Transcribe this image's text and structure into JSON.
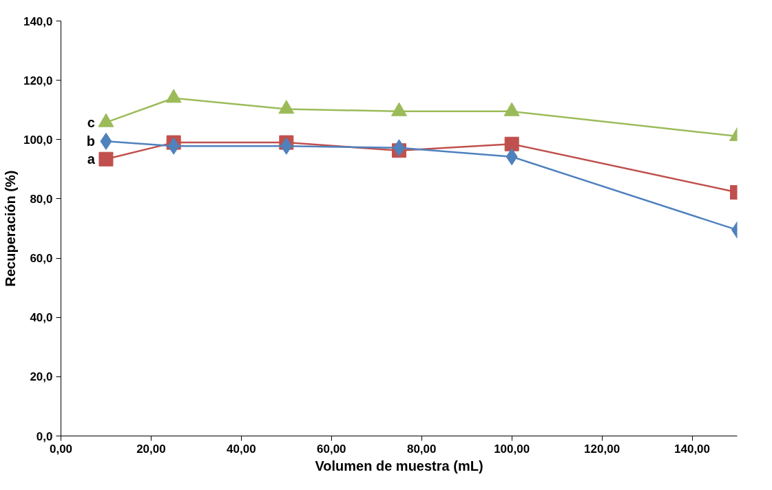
{
  "chart_data": {
    "type": "line",
    "xlabel": "Volumen de muestra (mL)",
    "ylabel": "Recuperación (%)",
    "x": [
      10,
      25,
      50,
      75,
      100,
      150
    ],
    "series": [
      {
        "name": "a",
        "color": "#c0504d",
        "marker": "square",
        "values": [
          93.4,
          99.0,
          99.0,
          96.3,
          98.5,
          82.2
        ]
      },
      {
        "name": "b",
        "color": "#4f81bd",
        "marker": "diamond",
        "values": [
          99.4,
          97.8,
          97.8,
          97.2,
          94.2,
          69.5
        ]
      },
      {
        "name": "c",
        "color": "#9bbb59",
        "marker": "triangle",
        "values": [
          105.8,
          114.0,
          110.3,
          109.5,
          109.5,
          101.1
        ]
      }
    ],
    "xlim": [
      0,
      150
    ],
    "ylim": [
      0,
      140
    ],
    "xticks": [
      {
        "value": 0,
        "label": "0,00"
      },
      {
        "value": 20,
        "label": "20,00"
      },
      {
        "value": 40,
        "label": "40,00"
      },
      {
        "value": 60,
        "label": "60,00"
      },
      {
        "value": 80,
        "label": "80,00"
      },
      {
        "value": 100,
        "label": "100,00"
      },
      {
        "value": 120,
        "label": "120,00"
      },
      {
        "value": 140,
        "label": "140,00"
      }
    ],
    "yticks": [
      {
        "value": 0,
        "label": "0,0"
      },
      {
        "value": 20,
        "label": "20,0"
      },
      {
        "value": 40,
        "label": "40,0"
      },
      {
        "value": 60,
        "label": "60,0"
      },
      {
        "value": 80,
        "label": "80,0"
      },
      {
        "value": 100,
        "label": "100,0"
      },
      {
        "value": 120,
        "label": "120,0"
      },
      {
        "value": 140,
        "label": "140,0"
      }
    ],
    "grid": false,
    "line_style": "solid"
  }
}
